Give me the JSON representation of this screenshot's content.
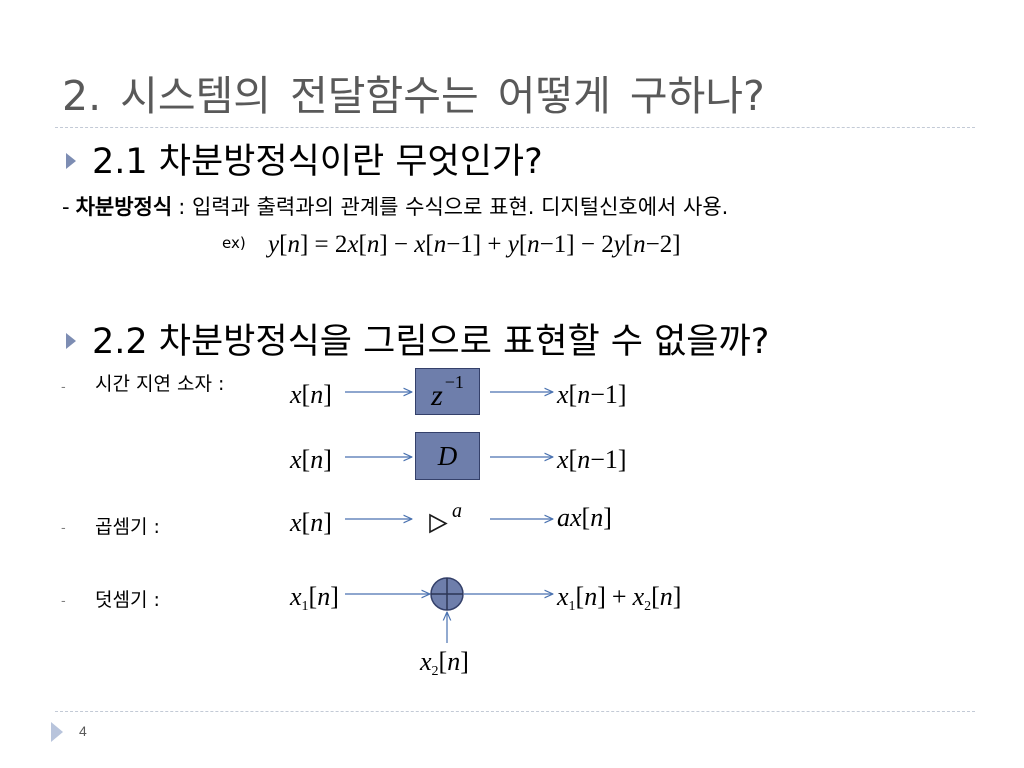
{
  "slide": {
    "title": "2. 시스템의 전달함수는 어떻게 구하나?",
    "page_number": "4"
  },
  "section_1": {
    "heading": "2.1 차분방정식이란 무엇인가?",
    "definition": {
      "dash": "-",
      "term": "차분방정식",
      "text": ": 입력과 출력과의 관계를 수식으로 표현. 디지털신호에서 사용."
    },
    "example": {
      "label": "ex)",
      "equation": "y[n] = 2x[n] − x[n−1] + y[n−1] − 2y[n−2]"
    }
  },
  "section_2": {
    "heading": "2.2 차분방정식을 그림으로 표현할 수 없을까?",
    "delay_element": {
      "dash": "-",
      "label": "시간 지연 소자 :",
      "z_block": {
        "input": "x[n]",
        "block": {
          "base": "z",
          "sup": "−1"
        },
        "output": "x[n−1]"
      },
      "d_block": {
        "input": "x[n]",
        "block": "D",
        "output": "x[n−1]"
      }
    },
    "multiplier": {
      "dash": "-",
      "label": "곱셈기 :",
      "input": "x[n]",
      "gain": "a",
      "output": "ax[n]"
    },
    "adder": {
      "dash": "-",
      "label": "덧셈기 :",
      "input_1": {
        "base": "x",
        "sub": "1",
        "arg": "[n]"
      },
      "input_2": {
        "base": "x",
        "sub": "2",
        "arg": "[n]"
      },
      "output": {
        "term_1": {
          "base": "x",
          "sub": "1",
          "arg": "[n]"
        },
        "operator": "+",
        "term_2": {
          "base": "x",
          "sub": "2",
          "arg": "[n]"
        }
      }
    }
  },
  "icons": {
    "bullet": "triangle-right",
    "footer": "triangle-right",
    "multiplier_symbol": "triangle-outline-right",
    "adder_symbol": "circle-plus",
    "connector": "arrow-right"
  },
  "colors": {
    "title_text": "#595959",
    "bullet": "#7d8db3",
    "block_fill": "#6e7eab",
    "block_border": "#34406a",
    "arrow": "#4a72b0",
    "divider": "#c3cad6",
    "footer_arrow": "#b8c4dc"
  }
}
